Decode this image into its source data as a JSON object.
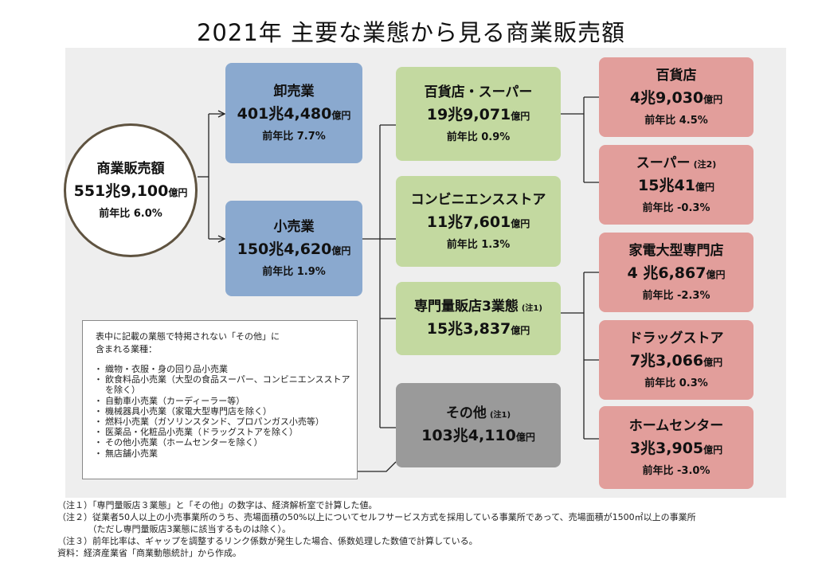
{
  "title": "2021年 主要な業態から見る商業販売額",
  "total": {
    "name": "商業販売額",
    "amount_main": "551兆9,100",
    "amount_unit": "億円",
    "yoy": "前年比  6.0%"
  },
  "wholesale": {
    "name": "卸売業",
    "amount_main": "401兆4,480",
    "amount_unit": "億円",
    "yoy": "前年比 7.7%"
  },
  "retail": {
    "name": "小売業",
    "amount_main": "150兆4,620",
    "amount_unit": "億円",
    "yoy": "前年比 1.9%"
  },
  "dept_super": {
    "name": "百貨店・スーパー",
    "amount_main": "19兆9,071",
    "amount_unit": "億円",
    "yoy": "前年比 0.9%"
  },
  "convenience": {
    "name": "コンビニエンスストア",
    "amount_main": "11兆7,601",
    "amount_unit": "億円",
    "yoy": "前年比 1.3%"
  },
  "specialty3": {
    "name": "専門量販店3業態",
    "note": "(注1)",
    "amount_main": "15兆3,837",
    "amount_unit": "億円"
  },
  "other": {
    "name": "その他",
    "note": "(注1)",
    "amount_main": "103兆4,110",
    "amount_unit": "億円"
  },
  "department_store": {
    "name": "百貨店",
    "amount_main": "4兆9,030",
    "amount_unit": "億円",
    "yoy": "前年比 4.5%"
  },
  "supermarket": {
    "name": "スーパー",
    "note": "(注2)",
    "amount_main": "15兆41",
    "amount_unit": "億円",
    "yoy": "前年比  -0.3%"
  },
  "electronics": {
    "name": "家電大型専門店",
    "amount_main": "4 兆6,867",
    "amount_unit": "億円",
    "yoy": "前年比  -2.3%"
  },
  "drugstore": {
    "name": "ドラッグストア",
    "amount_main": "7兆3,066",
    "amount_unit": "億円",
    "yoy": "前年比 0.3%"
  },
  "home_center": {
    "name": "ホームセンター",
    "amount_main": "3兆3,905",
    "amount_unit": "億円",
    "yoy": "前年比 -3.0%"
  },
  "legend": {
    "line1": "表中に記載の業態で特掲されない「その他」に",
    "line2": "含まれる業種：",
    "items": [
      "織物・衣服・身の回り品小売業",
      "飲食料品小売業（大型の食品スーパー、コンビニエンスストア",
      "を除く）",
      "自動車小売業（カーディーラー等）",
      "機械器具小売業（家電大型専門店を除く）",
      "燃料小売業（ガソリンスタンド、プロパンガス小売等）",
      "医薬品・化粧品小売業（ドラッグストアを除く）",
      "その他小売業（ホームセンターを除く）",
      "無店舗小売業"
    ]
  },
  "footnotes": [
    "（注１）「専門量販店３業態」と「その他」の数字は、経済解析室で計算した値。",
    "（注２）従業者50人以上の小売事業所のうち、売場面積の50%以上についてセルフサービス方式を採用している事業所であって、売場面積が1500㎡以上の事業所",
    "　　　　（ただし専門量販店3業態に該当するものは除く）。",
    "（注３）前年比率は、ギャップを調整するリンク係数が発生した場合、係数処理した数値で計算している。",
    "資料：経済産業省「商業動態統計」から作成。"
  ]
}
